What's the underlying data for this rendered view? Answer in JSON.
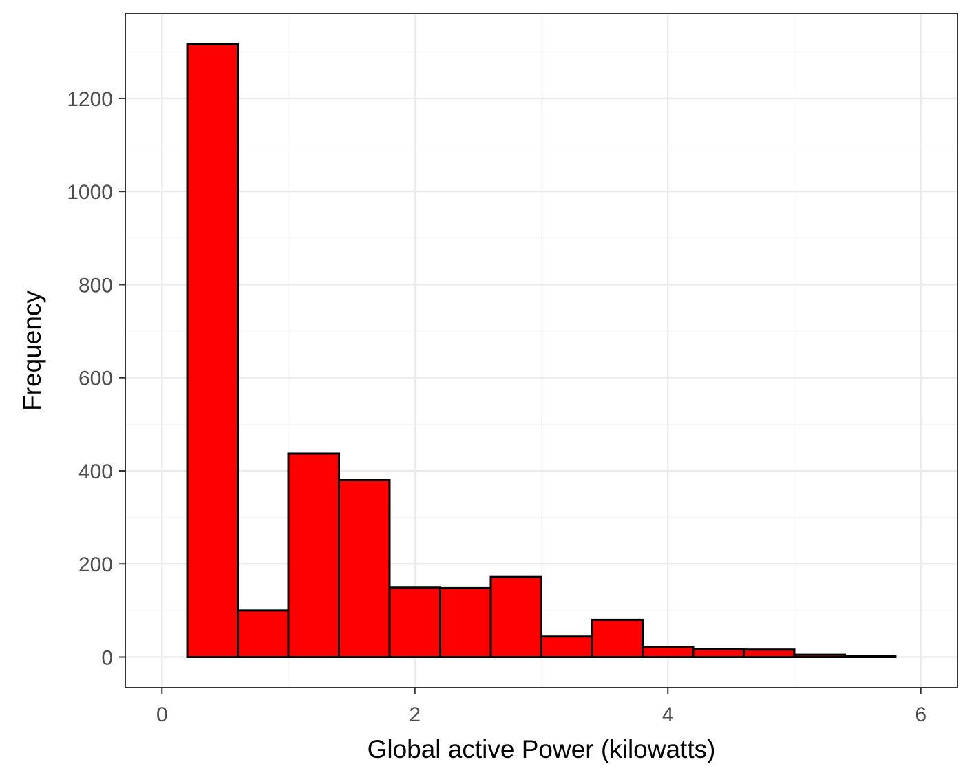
{
  "chart_data": {
    "type": "bar",
    "title": "",
    "xlabel": "Global active Power (kilowatts)",
    "ylabel": "Frequency",
    "xlim": [
      -0.29,
      6.29
    ],
    "ylim": [
      -65.8,
      1381.8
    ],
    "x_ticks": [
      0,
      2,
      4,
      6
    ],
    "y_ticks": [
      0,
      200,
      400,
      600,
      800,
      1000,
      1200
    ],
    "x_tick_labels": [
      "0",
      "2",
      "4",
      "6"
    ],
    "y_tick_labels": [
      "0",
      "200",
      "400",
      "600",
      "800",
      "1000",
      "1200"
    ],
    "grid": true,
    "bin_width": 0.4,
    "bins": [
      {
        "x0": 0.2,
        "x1": 0.6,
        "count": 1316
      },
      {
        "x0": 0.6,
        "x1": 1.0,
        "count": 100
      },
      {
        "x0": 1.0,
        "x1": 1.4,
        "count": 437
      },
      {
        "x0": 1.4,
        "x1": 1.8,
        "count": 380
      },
      {
        "x0": 1.8,
        "x1": 2.2,
        "count": 149
      },
      {
        "x0": 2.2,
        "x1": 2.6,
        "count": 148
      },
      {
        "x0": 2.6,
        "x1": 3.0,
        "count": 172
      },
      {
        "x0": 3.0,
        "x1": 3.4,
        "count": 44
      },
      {
        "x0": 3.4,
        "x1": 3.8,
        "count": 80
      },
      {
        "x0": 3.8,
        "x1": 4.2,
        "count": 22
      },
      {
        "x0": 4.2,
        "x1": 4.6,
        "count": 17
      },
      {
        "x0": 4.6,
        "x1": 5.0,
        "count": 16
      },
      {
        "x0": 5.0,
        "x1": 5.4,
        "count": 5
      },
      {
        "x0": 5.4,
        "x1": 5.8,
        "count": 3
      }
    ],
    "colors": {
      "bar_fill": "#ff0000",
      "bar_stroke": "#000000",
      "grid_major": "#ebebeb",
      "grid_minor": "#f5f5f5",
      "panel_border": "#333333",
      "tick_text": "#4d4d4d",
      "axis_title": "#000000"
    }
  }
}
